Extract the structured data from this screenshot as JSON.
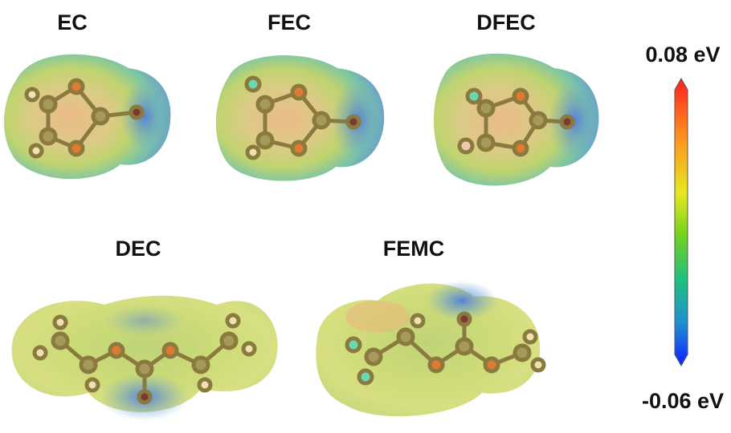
{
  "panels": [
    {
      "label": "EC"
    },
    {
      "label": "FEC"
    },
    {
      "label": "DFEC"
    },
    {
      "label": "DEC"
    },
    {
      "label": "FEMC"
    }
  ],
  "colorbar": {
    "max_label": "0.08 eV",
    "min_label": "-0.06 eV"
  }
}
